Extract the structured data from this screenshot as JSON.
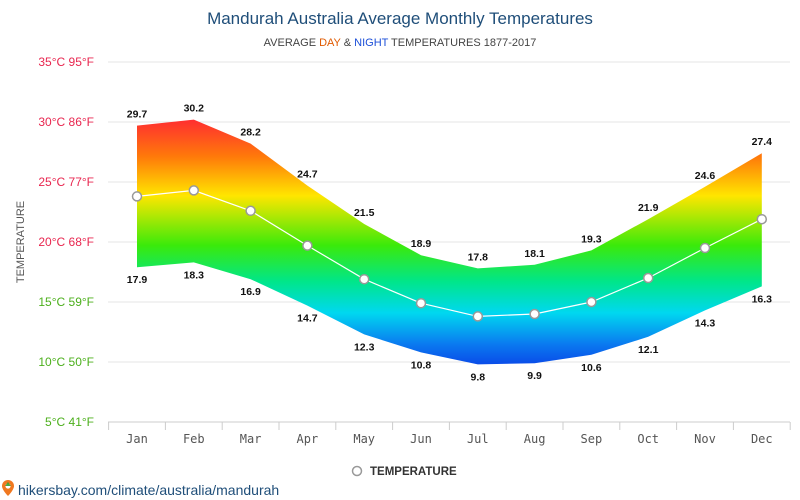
{
  "title": "Mandurah Australia Average Monthly Temperatures",
  "subtitle": {
    "prefix": "AVERAGE ",
    "day": "DAY",
    "amp": " & ",
    "night": "NIGHT",
    "suffix": " TEMPERATURES 1877-2017"
  },
  "colors": {
    "title": "#1f4e79",
    "day": "#e05a00",
    "night": "#1c4fd8",
    "hot": "#ff1a3a",
    "cold": "#0a3fe6",
    "mean_line": "#ffffff",
    "marker_stroke": "#999999"
  },
  "y_axis_title": "TEMPERATURE",
  "legend_label": "TEMPERATURE",
  "source_text": "hikersbay.com/climate/australia/mandurah",
  "source_icon": "map-pin-icon",
  "chart_data": {
    "type": "area",
    "categories": [
      "Jan",
      "Feb",
      "Mar",
      "Apr",
      "May",
      "Jun",
      "Jul",
      "Aug",
      "Sep",
      "Oct",
      "Nov",
      "Dec"
    ],
    "series": [
      {
        "name": "DAY",
        "values": [
          29.7,
          30.2,
          28.2,
          24.7,
          21.5,
          18.9,
          17.8,
          18.1,
          19.3,
          21.9,
          24.6,
          27.4
        ]
      },
      {
        "name": "NIGHT",
        "values": [
          17.9,
          18.3,
          16.9,
          14.7,
          12.3,
          10.8,
          9.8,
          9.9,
          10.6,
          12.1,
          14.3,
          16.3
        ]
      },
      {
        "name": "TEMPERATURE",
        "values": [
          23.8,
          24.3,
          22.6,
          19.7,
          16.9,
          14.9,
          13.8,
          14.0,
          15.0,
          17.0,
          19.5,
          21.9
        ]
      }
    ],
    "ylim": [
      5,
      35
    ],
    "yticks": [
      {
        "value": 35,
        "label": "35°C 95°F",
        "color": "#e8264f"
      },
      {
        "value": 30,
        "label": "30°C 86°F",
        "color": "#e8264f"
      },
      {
        "value": 25,
        "label": "25°C 77°F",
        "color": "#e8264f"
      },
      {
        "value": 20,
        "label": "20°C 68°F",
        "color": "#e8264f"
      },
      {
        "value": 15,
        "label": "15°C 59°F",
        "color": "#4caf1c"
      },
      {
        "value": 10,
        "label": "10°C 50°F",
        "color": "#4caf1c"
      },
      {
        "value": 5,
        "label": "5°C 41°F",
        "color": "#4caf1c"
      }
    ],
    "grid": true,
    "legend_position": "bottom-center"
  }
}
